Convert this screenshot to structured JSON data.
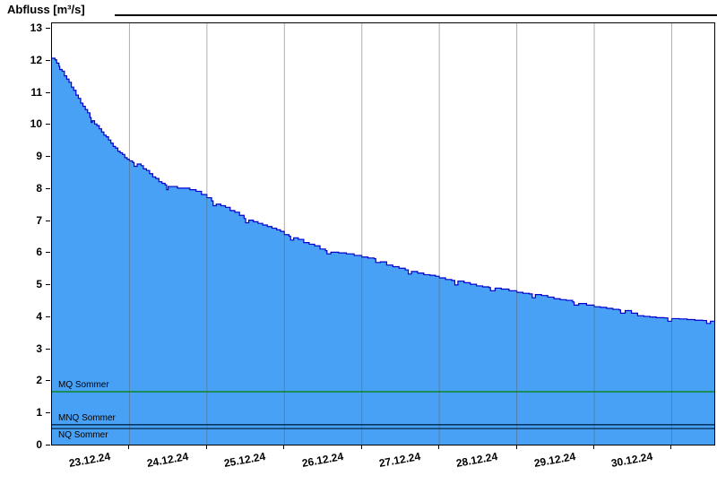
{
  "header": {
    "title": "Abfluss [m³/s]"
  },
  "chart_data": {
    "type": "area",
    "title": "Abfluss [m³/s]",
    "xlabel": "",
    "ylabel": "Abfluss [m³/s]",
    "ylim": [
      0,
      13.14
    ],
    "y_ticks": [
      0,
      1,
      2,
      3,
      4,
      5,
      6,
      7,
      8,
      9,
      10,
      11,
      12,
      13
    ],
    "x_categories": [
      "23.12.24",
      "24.12.24",
      "25.12.24",
      "26.12.24",
      "27.12.24",
      "28.12.24",
      "29.12.24",
      "30.12.24"
    ],
    "x_range_days": [
      0,
      8.55
    ],
    "grid_days": [
      1,
      2,
      3,
      4,
      5,
      6,
      7,
      8
    ],
    "grid": "vertical-only",
    "legend": "none",
    "colors": {
      "fill": "#49a1f5",
      "line": "#0000cd",
      "grid": "#606060",
      "frame": "#000000"
    },
    "reference_lines": [
      {
        "label": "MQ Sommer",
        "value": 1.65,
        "color": "#008000",
        "label_position": "above"
      },
      {
        "label": "MNQ Sommer",
        "value": 0.62,
        "color": "#00264d",
        "label_position": "above"
      },
      {
        "label": "NQ Sommer",
        "value": 0.5,
        "color": "#00264d",
        "label_position": "below"
      }
    ],
    "series": [
      {
        "name": "Abfluss",
        "unit": "m³/s",
        "points": [
          [
            0.0,
            12.05
          ],
          [
            0.04,
            12.0
          ],
          [
            0.06,
            11.9
          ],
          [
            0.09,
            11.8
          ],
          [
            0.1,
            11.7
          ],
          [
            0.13,
            11.65
          ],
          [
            0.16,
            11.5
          ],
          [
            0.19,
            11.4
          ],
          [
            0.22,
            11.3
          ],
          [
            0.25,
            11.15
          ],
          [
            0.28,
            11.05
          ],
          [
            0.31,
            10.9
          ],
          [
            0.34,
            10.8
          ],
          [
            0.37,
            10.65
          ],
          [
            0.4,
            10.55
          ],
          [
            0.43,
            10.45
          ],
          [
            0.46,
            10.35
          ],
          [
            0.49,
            10.2
          ],
          [
            0.505,
            10.05
          ],
          [
            0.52,
            10.1
          ],
          [
            0.55,
            10.0
          ],
          [
            0.58,
            9.95
          ],
          [
            0.61,
            9.85
          ],
          [
            0.64,
            9.75
          ],
          [
            0.67,
            9.65
          ],
          [
            0.7,
            9.6
          ],
          [
            0.73,
            9.5
          ],
          [
            0.76,
            9.4
          ],
          [
            0.79,
            9.3
          ],
          [
            0.82,
            9.25
          ],
          [
            0.85,
            9.15
          ],
          [
            0.88,
            9.1
          ],
          [
            0.91,
            9.05
          ],
          [
            0.94,
            8.95
          ],
          [
            0.97,
            8.9
          ],
          [
            1.0,
            8.85
          ],
          [
            1.04,
            8.8
          ],
          [
            1.06,
            8.68
          ],
          [
            1.1,
            8.75
          ],
          [
            1.15,
            8.7
          ],
          [
            1.18,
            8.6
          ],
          [
            1.22,
            8.55
          ],
          [
            1.26,
            8.45
          ],
          [
            1.3,
            8.35
          ],
          [
            1.34,
            8.3
          ],
          [
            1.38,
            8.2
          ],
          [
            1.42,
            8.15
          ],
          [
            1.46,
            8.1
          ],
          [
            1.48,
            7.95
          ],
          [
            1.5,
            8.05
          ],
          [
            1.56,
            8.05
          ],
          [
            1.62,
            8.0
          ],
          [
            1.7,
            8.0
          ],
          [
            1.78,
            7.95
          ],
          [
            1.86,
            7.9
          ],
          [
            1.93,
            7.8
          ],
          [
            2.0,
            7.7
          ],
          [
            2.06,
            7.6
          ],
          [
            2.08,
            7.45
          ],
          [
            2.12,
            7.5
          ],
          [
            2.18,
            7.45
          ],
          [
            2.24,
            7.4
          ],
          [
            2.3,
            7.3
          ],
          [
            2.36,
            7.25
          ],
          [
            2.42,
            7.15
          ],
          [
            2.48,
            7.05
          ],
          [
            2.5,
            6.92
          ],
          [
            2.54,
            7.0
          ],
          [
            2.6,
            6.95
          ],
          [
            2.66,
            6.9
          ],
          [
            2.72,
            6.85
          ],
          [
            2.78,
            6.8
          ],
          [
            2.84,
            6.75
          ],
          [
            2.9,
            6.7
          ],
          [
            2.95,
            6.65
          ],
          [
            3.0,
            6.55
          ],
          [
            3.06,
            6.5
          ],
          [
            3.08,
            6.38
          ],
          [
            3.12,
            6.45
          ],
          [
            3.18,
            6.4
          ],
          [
            3.25,
            6.3
          ],
          [
            3.32,
            6.25
          ],
          [
            3.39,
            6.2
          ],
          [
            3.46,
            6.1
          ],
          [
            3.53,
            6.05
          ],
          [
            3.55,
            5.95
          ],
          [
            3.6,
            6.0
          ],
          [
            3.7,
            5.98
          ],
          [
            3.8,
            5.95
          ],
          [
            3.9,
            5.9
          ],
          [
            4.0,
            5.85
          ],
          [
            4.08,
            5.82
          ],
          [
            4.16,
            5.8
          ],
          [
            4.18,
            5.68
          ],
          [
            4.24,
            5.7
          ],
          [
            4.32,
            5.6
          ],
          [
            4.4,
            5.55
          ],
          [
            4.48,
            5.5
          ],
          [
            4.56,
            5.45
          ],
          [
            4.6,
            5.32
          ],
          [
            4.64,
            5.4
          ],
          [
            4.72,
            5.35
          ],
          [
            4.8,
            5.3
          ],
          [
            4.88,
            5.28
          ],
          [
            4.95,
            5.25
          ],
          [
            5.0,
            5.2
          ],
          [
            5.08,
            5.15
          ],
          [
            5.16,
            5.12
          ],
          [
            5.2,
            4.98
          ],
          [
            5.24,
            5.1
          ],
          [
            5.32,
            5.05
          ],
          [
            5.4,
            5.0
          ],
          [
            5.48,
            4.95
          ],
          [
            5.56,
            4.92
          ],
          [
            5.64,
            4.9
          ],
          [
            5.66,
            4.8
          ],
          [
            5.72,
            4.88
          ],
          [
            5.8,
            4.85
          ],
          [
            5.9,
            4.8
          ],
          [
            6.0,
            4.75
          ],
          [
            6.08,
            4.72
          ],
          [
            6.16,
            4.7
          ],
          [
            6.2,
            4.58
          ],
          [
            6.24,
            4.68
          ],
          [
            6.32,
            4.65
          ],
          [
            6.4,
            4.6
          ],
          [
            6.48,
            4.55
          ],
          [
            6.56,
            4.52
          ],
          [
            6.64,
            4.5
          ],
          [
            6.72,
            4.45
          ],
          [
            6.74,
            4.35
          ],
          [
            6.8,
            4.4
          ],
          [
            6.9,
            4.35
          ],
          [
            7.0,
            4.3
          ],
          [
            7.08,
            4.28
          ],
          [
            7.16,
            4.25
          ],
          [
            7.24,
            4.22
          ],
          [
            7.32,
            4.2
          ],
          [
            7.34,
            4.1
          ],
          [
            7.4,
            4.18
          ],
          [
            7.48,
            4.1
          ],
          [
            7.56,
            4.02
          ],
          [
            7.64,
            4.0
          ],
          [
            7.72,
            3.98
          ],
          [
            7.8,
            3.96
          ],
          [
            7.9,
            3.95
          ],
          [
            7.95,
            3.85
          ],
          [
            8.0,
            3.93
          ],
          [
            8.1,
            3.92
          ],
          [
            8.2,
            3.9
          ],
          [
            8.3,
            3.88
          ],
          [
            8.4,
            3.87
          ],
          [
            8.45,
            3.78
          ],
          [
            8.5,
            3.85
          ],
          [
            8.55,
            3.85
          ]
        ]
      }
    ]
  }
}
